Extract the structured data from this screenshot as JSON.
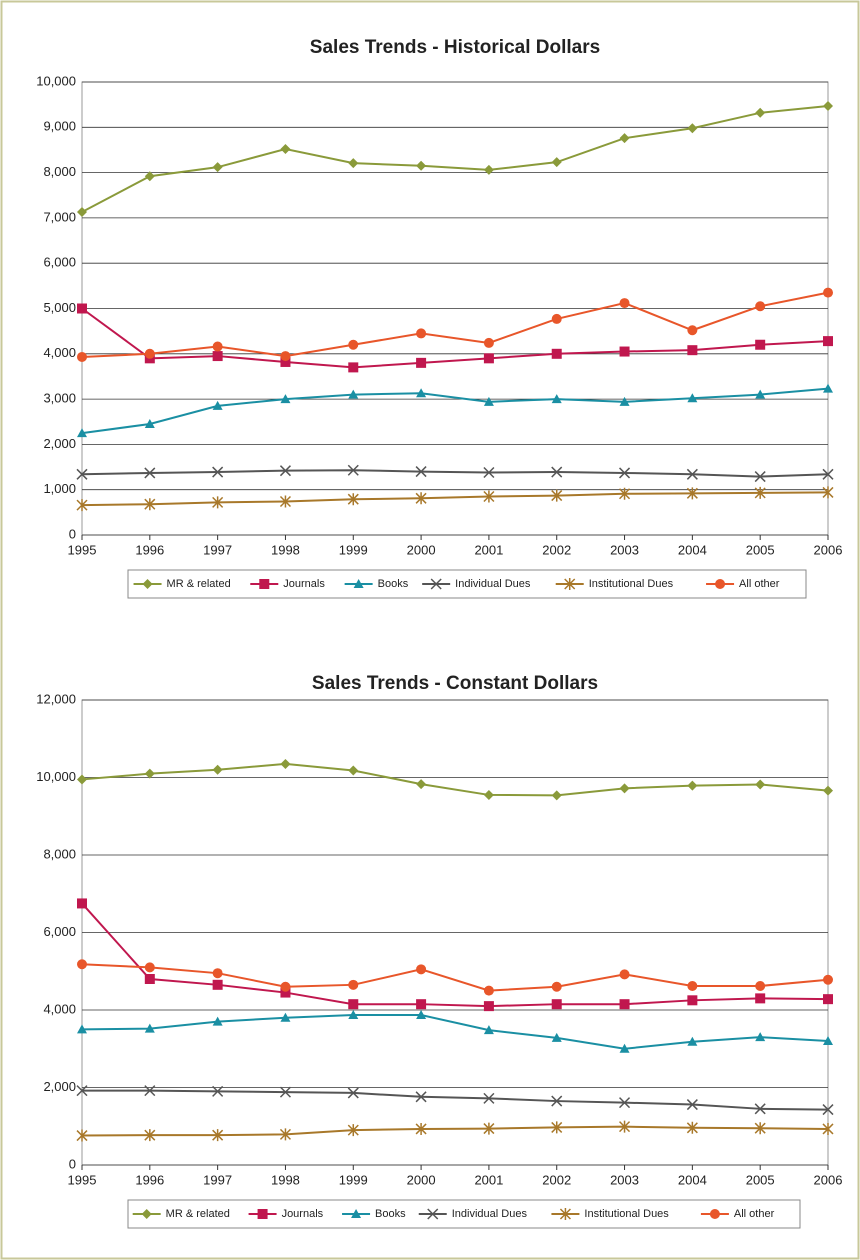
{
  "chart_data": [
    {
      "type": "line",
      "title": "Sales Trends - Historical Dollars",
      "categories": [
        "1995",
        "1996",
        "1997",
        "1998",
        "1999",
        "2000",
        "2001",
        "2002",
        "2003",
        "2004",
        "2005",
        "2006"
      ],
      "ylim": [
        0,
        10000
      ],
      "yticks": [
        0,
        {
          "value": 1000,
          "label": "1,000"
        },
        {
          "value": 2000,
          "label": "2,000"
        },
        {
          "value": 3000,
          "label": "3,000"
        },
        {
          "value": 4000,
          "label": "4,000"
        },
        {
          "value": 5000,
          "label": "5,000"
        },
        {
          "value": 6000,
          "label": "6,000"
        },
        {
          "value": 7000,
          "label": "7,000"
        },
        {
          "value": 8000,
          "label": "8,000"
        },
        {
          "value": 9000,
          "label": "9,000"
        },
        {
          "value": 10000,
          "label": "10,000"
        }
      ],
      "grid": true,
      "series": [
        {
          "name": "MR & related",
          "color": "#8a9a3a",
          "marker": "diamond",
          "values": [
            7130,
            7920,
            8120,
            8520,
            8210,
            8150,
            8060,
            8230,
            8760,
            8980,
            9320,
            9470
          ]
        },
        {
          "name": "Journals",
          "color": "#c0174e",
          "marker": "square",
          "values": [
            5000,
            3900,
            3950,
            3820,
            3700,
            3800,
            3900,
            4000,
            4050,
            4080,
            4200,
            4280
          ]
        },
        {
          "name": "Books",
          "color": "#1a8fa3",
          "marker": "triangle",
          "values": [
            2250,
            2450,
            2850,
            3000,
            3100,
            3130,
            2940,
            3000,
            2940,
            3020,
            3100,
            3230
          ]
        },
        {
          "name": "Individual Dues",
          "color": "#555555",
          "marker": "x",
          "values": [
            1340,
            1370,
            1390,
            1420,
            1430,
            1400,
            1380,
            1390,
            1370,
            1340,
            1290,
            1340
          ]
        },
        {
          "name": "Institutional Dues",
          "color": "#a8782a",
          "marker": "star",
          "values": [
            660,
            680,
            720,
            740,
            790,
            810,
            850,
            870,
            910,
            920,
            930,
            940
          ]
        },
        {
          "name": "All other",
          "color": "#e8562a",
          "marker": "circle",
          "values": [
            3930,
            4000,
            4160,
            3950,
            4200,
            4450,
            4240,
            4770,
            5120,
            4520,
            5050,
            5350
          ]
        }
      ]
    },
    {
      "type": "line",
      "title": "Sales Trends - Constant Dollars",
      "categories": [
        "1995",
        "1996",
        "1997",
        "1998",
        "1999",
        "2000",
        "2001",
        "2002",
        "2003",
        "2004",
        "2005",
        "2006"
      ],
      "ylim": [
        0,
        12000
      ],
      "yticks": [
        0,
        {
          "value": 2000,
          "label": "2,000"
        },
        {
          "value": 4000,
          "label": "4,000"
        },
        {
          "value": 6000,
          "label": "6,000"
        },
        {
          "value": 8000,
          "label": "8,000"
        },
        {
          "value": 10000,
          "label": "10,000"
        },
        {
          "value": 12000,
          "label": "12,000"
        }
      ],
      "grid": true,
      "series": [
        {
          "name": "MR & related",
          "color": "#8a9a3a",
          "marker": "diamond",
          "values": [
            9950,
            10100,
            10200,
            10350,
            10180,
            9830,
            9550,
            9540,
            9720,
            9790,
            9820,
            9660
          ]
        },
        {
          "name": "Journals",
          "color": "#c0174e",
          "marker": "square",
          "values": [
            6750,
            4800,
            4650,
            4450,
            4150,
            4150,
            4100,
            4150,
            4150,
            4250,
            4300,
            4280
          ]
        },
        {
          "name": "Books",
          "color": "#1a8fa3",
          "marker": "triangle",
          "values": [
            3500,
            3520,
            3700,
            3800,
            3870,
            3870,
            3480,
            3280,
            3000,
            3180,
            3300,
            3200
          ]
        },
        {
          "name": "Individual Dues",
          "color": "#555555",
          "marker": "x",
          "values": [
            1920,
            1920,
            1900,
            1880,
            1860,
            1760,
            1720,
            1650,
            1610,
            1560,
            1450,
            1430
          ]
        },
        {
          "name": "Institutional Dues",
          "color": "#a8782a",
          "marker": "star",
          "values": [
            760,
            770,
            770,
            790,
            900,
            930,
            940,
            970,
            990,
            960,
            950,
            930
          ]
        },
        {
          "name": "All other",
          "color": "#e8562a",
          "marker": "circle",
          "values": [
            5180,
            5100,
            4950,
            4600,
            4650,
            5050,
            4500,
            4600,
            4920,
            4620,
            4620,
            4780
          ]
        }
      ]
    }
  ]
}
